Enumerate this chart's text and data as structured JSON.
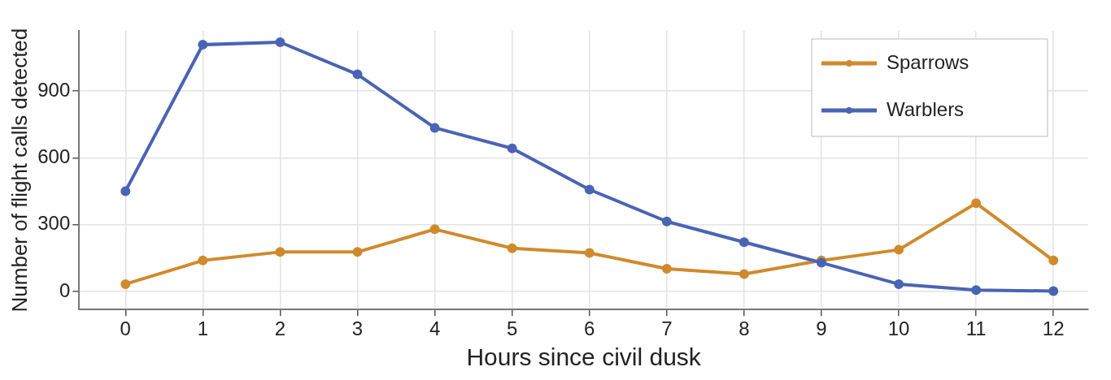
{
  "chart_data": {
    "type": "line",
    "xlabel": "Hours since civil dusk",
    "ylabel": "Number of flight calls detected",
    "x": [
      0,
      1,
      2,
      3,
      4,
      5,
      6,
      7,
      8,
      9,
      10,
      11,
      12
    ],
    "series": [
      {
        "name": "Sparrows",
        "color": "#d08a2c",
        "values": [
          34,
          140,
          178,
          178,
          280,
          195,
          174,
          103,
          79,
          140,
          188,
          397,
          140
        ]
      },
      {
        "name": "Warblers",
        "color": "#4a63b4",
        "values": [
          451,
          1108,
          1119,
          975,
          735,
          643,
          458,
          315,
          222,
          130,
          34,
          7,
          3
        ]
      }
    ],
    "xlim": [
      -0.6,
      12.45
    ],
    "xticks": [
      0,
      1,
      2,
      3,
      4,
      5,
      6,
      7,
      8,
      9,
      10,
      11,
      12
    ],
    "ylim": [
      -80,
      1170
    ],
    "yticks": [
      0,
      300,
      600,
      900
    ],
    "grid": true,
    "legend": "top right",
    "marker": "circle",
    "line_style": "solid"
  }
}
